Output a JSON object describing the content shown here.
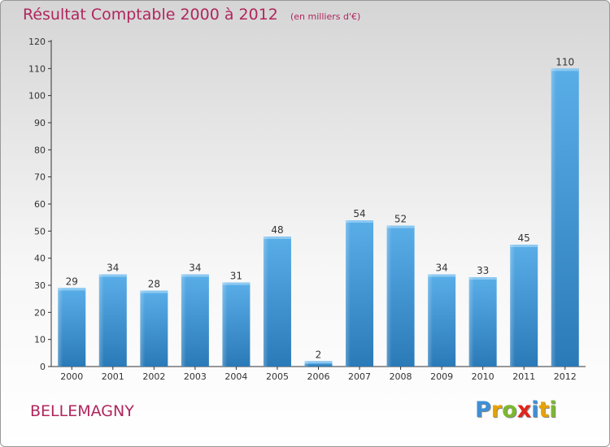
{
  "chart_data": {
    "type": "bar",
    "title": "Résultat Comptable 2000 à 2012",
    "unit_label": "(en milliers d'€)",
    "categories": [
      "2000",
      "2001",
      "2002",
      "2003",
      "2004",
      "2005",
      "2006",
      "2007",
      "2008",
      "2009",
      "2010",
      "2011",
      "2012"
    ],
    "values": [
      29,
      34,
      28,
      34,
      31,
      48,
      2,
      54,
      52,
      34,
      33,
      45,
      110
    ],
    "ylim": [
      0,
      120
    ],
    "yticks": [
      0,
      10,
      20,
      30,
      40,
      50,
      60,
      70,
      80,
      90,
      100,
      110,
      120
    ],
    "xlabel": "",
    "ylabel": "",
    "bar_color_top": "#5aaee8",
    "bar_color_bottom": "#2a7ab8"
  },
  "commune": "BELLEMAGNY",
  "logo": {
    "letters": [
      "P",
      "r",
      "o",
      "x",
      "i",
      "t",
      "i"
    ],
    "colors": [
      "#3d8fd6",
      "#e8a200",
      "#7cb82f",
      "#e2231a",
      "#3d8fd6",
      "#e8a200",
      "#7cb82f"
    ]
  }
}
